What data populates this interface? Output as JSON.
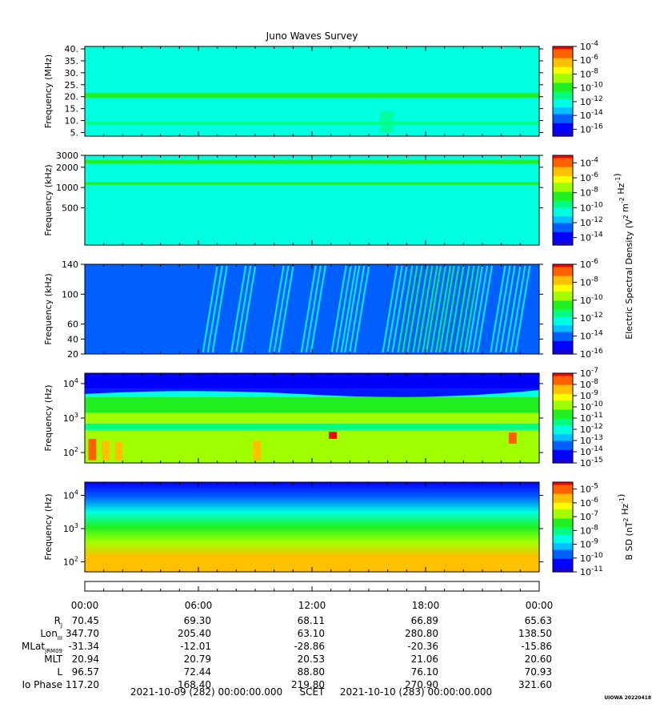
{
  "title": "Juno Waves Survey",
  "credit": "UIOWA 20220418",
  "colors": {
    "scale": [
      "#1a00c8",
      "#0000ff",
      "#0060ff",
      "#00c0ff",
      "#00ffe0",
      "#00ff80",
      "#20f020",
      "#a0ff00",
      "#ffff00",
      "#ffc000",
      "#ff6000",
      "#ff0000"
    ]
  },
  "chart_data": [
    {
      "type": "heatmap",
      "ylabel": "Frequency (MHz)",
      "y_scale": "linear",
      "ylim": [
        3.5,
        41
      ],
      "yticks": [
        5,
        10,
        15,
        20,
        25,
        30,
        35,
        40
      ],
      "yticklabels": [
        "5.",
        "10.",
        "15.",
        "20.",
        "25.",
        "30.",
        "35.",
        "40."
      ],
      "colorbar": {
        "exp_min": -17,
        "exp_max": -4,
        "ticks": [
          -16,
          -14,
          -12,
          -10,
          -8,
          -6,
          -4
        ],
        "labels": [
          "-16",
          "-14",
          "-12",
          "-10",
          "-8",
          "-6",
          "-4"
        ]
      },
      "background_level": 0.4,
      "bands": [
        {
          "y": 20.5,
          "width": 2.0,
          "level": 0.55
        },
        {
          "y": 9.0,
          "width": 1.0,
          "level": 0.43
        }
      ]
    },
    {
      "type": "heatmap",
      "ylabel": "Frequency (kHz)",
      "y_scale": "log",
      "ylim": [
        140,
        3000
      ],
      "yticks": [
        500,
        1000,
        2000,
        3000
      ],
      "yticklabels": [
        "500",
        "1000",
        "2000",
        "3000"
      ],
      "colorbar": {
        "exp_min": -15,
        "exp_max": -3,
        "ticks": [
          -14,
          -12,
          -10,
          -8,
          -6,
          -4
        ],
        "labels": [
          "-14",
          "-12",
          "-10",
          "-8",
          "-6",
          "-4"
        ]
      },
      "background_level": 0.4,
      "bands": [
        {
          "y": 2400,
          "width": 300,
          "level": 0.55
        },
        {
          "y": 1150,
          "width": 110,
          "level": 0.52
        }
      ]
    },
    {
      "type": "heatmap",
      "ylabel": "Frequency (kHz)",
      "y_scale": "linear",
      "ylim": [
        20,
        140
      ],
      "yticks": [
        20,
        40,
        60,
        100,
        140
      ],
      "yticklabels": [
        "20",
        "40",
        "60",
        "100",
        "140"
      ],
      "colorbar": {
        "exp_min": -16,
        "exp_max": -6,
        "ticks": [
          -16,
          -14,
          -12,
          -10,
          -8,
          -6
        ],
        "labels": [
          "-16",
          "-14",
          "-12",
          "-10",
          "-8",
          "-6"
        ]
      },
      "shared_label": "Electric Spectral Density (V2 m-2 Hz-1)",
      "background_level": 0.2,
      "bursts": [
        {
          "t_hours": 7.0,
          "level": 0.32
        },
        {
          "t_hours": 8.5,
          "level": 0.34
        },
        {
          "t_hours": 10.5,
          "level": 0.35
        },
        {
          "t_hours": 12.2,
          "level": 0.33
        },
        {
          "t_hours": 13.8,
          "level": 0.37
        },
        {
          "t_hours": 14.5,
          "level": 0.38
        },
        {
          "t_hours": 16.5,
          "level": 0.4
        },
        {
          "t_hours": 17.3,
          "level": 0.42
        },
        {
          "t_hours": 18.1,
          "level": 0.45
        },
        {
          "t_hours": 18.8,
          "level": 0.46
        },
        {
          "t_hours": 19.5,
          "level": 0.44
        },
        {
          "t_hours": 20.3,
          "level": 0.42
        },
        {
          "t_hours": 21.0,
          "level": 0.4
        },
        {
          "t_hours": 22.2,
          "level": 0.38
        },
        {
          "t_hours": 23.0,
          "level": 0.36
        }
      ]
    },
    {
      "type": "heatmap",
      "ylabel": "Frequency (Hz)",
      "y_scale": "log",
      "ylim": [
        50,
        20000
      ],
      "yticks": [
        100,
        1000,
        10000
      ],
      "yticklabels": [
        "10^2",
        "10^3",
        "10^4"
      ],
      "colorbar": {
        "exp_min": -15,
        "exp_max": -7,
        "ticks": [
          -15,
          -14,
          -13,
          -12,
          -11,
          -10,
          -9,
          -8,
          -7
        ],
        "labels": [
          "-15",
          "-14",
          "-13",
          "-12",
          "-11",
          "-10",
          "-9",
          "-8",
          "-7"
        ]
      },
      "layers": [
        {
          "from": 7000,
          "to": 20000,
          "level": 0.12
        },
        {
          "from": 4000,
          "to": 7000,
          "level": 0.38
        },
        {
          "from": 1400,
          "to": 4000,
          "level": 0.58
        },
        {
          "from": 700,
          "to": 1400,
          "level": 0.64
        },
        {
          "from": 450,
          "to": 700,
          "level": 0.46
        },
        {
          "from": 50,
          "to": 450,
          "level": 0.6
        }
      ],
      "hot_spots": [
        {
          "t_hours": 0.4,
          "f_from": 60,
          "f_to": 250,
          "level": 0.88
        },
        {
          "t_hours": 1.1,
          "f_from": 60,
          "f_to": 220,
          "level": 0.85
        },
        {
          "t_hours": 1.8,
          "f_from": 60,
          "f_to": 200,
          "level": 0.82
        },
        {
          "t_hours": 9.1,
          "f_from": 60,
          "f_to": 220,
          "level": 0.84
        },
        {
          "t_hours": 13.1,
          "f_from": 250,
          "f_to": 400,
          "level": 0.96
        },
        {
          "t_hours": 22.6,
          "f_from": 180,
          "f_to": 380,
          "level": 0.95
        }
      ]
    },
    {
      "type": "heatmap",
      "ylabel": "Frequency (Hz)",
      "y_scale": "log",
      "ylim": [
        50,
        25000
      ],
      "yticks": [
        100,
        1000,
        10000
      ],
      "yticklabels": [
        "10^2",
        "10^3",
        "10^4"
      ],
      "colorbar": {
        "exp_min": -11,
        "exp_max": -4.5,
        "ticks": [
          -11,
          -10,
          -9,
          -8,
          -7,
          -6,
          -5
        ],
        "labels": [
          "-11",
          "-10",
          "-9",
          "-8",
          "-7",
          "-6",
          "-5"
        ]
      },
      "colorbar_label": "B SD (nT2 Hz-1)",
      "gradient_levels": [
        0.1,
        0.18,
        0.32,
        0.52,
        0.68,
        0.8,
        0.86
      ]
    }
  ],
  "time_axis": {
    "hours": [
      0,
      6,
      12,
      18,
      24
    ],
    "labels": [
      "00:00",
      "06:00",
      "12:00",
      "18:00",
      "00:00"
    ],
    "minor_step_hours": 1
  },
  "ephemeris": [
    {
      "label": "R",
      "sub": "J",
      "values": [
        "70.45",
        "69.30",
        "68.11",
        "66.89",
        "65.63"
      ]
    },
    {
      "label": "Lon",
      "sub": "III",
      "values": [
        "347.70",
        "205.40",
        "63.10",
        "280.80",
        "138.50"
      ]
    },
    {
      "label": "MLat",
      "sub": "JRM09",
      "values": [
        "-31.34",
        "-12.01",
        "-28.86",
        "-20.36",
        "-15.86"
      ]
    },
    {
      "label": "MLT",
      "sub": "",
      "values": [
        "20.94",
        "20.79",
        "20.53",
        "21.06",
        "20.60"
      ]
    },
    {
      "label": "L",
      "sub": "",
      "values": [
        "96.57",
        "72.44",
        "88.80",
        "76.10",
        "70.93"
      ]
    },
    {
      "label": "Io Phase",
      "sub": "",
      "values": [
        "117.20",
        "168.40",
        "219.80",
        "270.90",
        "321.60"
      ]
    }
  ],
  "footer": {
    "start": "2021-10-09 (282) 00:00:00.000",
    "middle": "SCET",
    "end": "2021-10-10 (283) 00:00:00.000"
  }
}
